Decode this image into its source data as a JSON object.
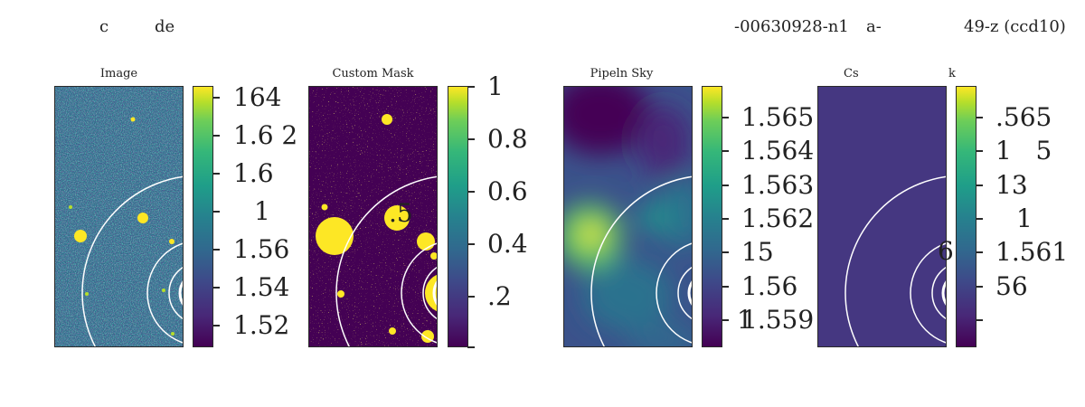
{
  "suptitle": {
    "left_a": "c",
    "left_b": "de",
    "mid": "-00630928-n1",
    "mid_b": "a-",
    "right": "49-z (ccd10)"
  },
  "chart_data": [
    {
      "type": "heatmap",
      "title": "Image",
      "colormap": "viridis",
      "ticks": [
        "164",
        "1.6 2",
        "1.6",
        "1",
        "1.56",
        "1.54",
        "1.52"
      ],
      "colors": {
        "background": "#2b7a8a",
        "sources": "#fde725",
        "rings": "#ffffff"
      }
    },
    {
      "type": "heatmap",
      "title": "Custom Mask",
      "colormap": "viridis",
      "ticks": [
        "1",
        "0.8",
        "0.6",
        "0.4",
        ".2"
      ],
      "overlay_text": ".5",
      "colors": {
        "background": "#440154",
        "masked": "#fde725",
        "rings": "#ffffff"
      }
    },
    {
      "type": "heatmap",
      "title": "Pipeln Sky",
      "colormap": "viridis",
      "ticks": [
        "1.565",
        "1.564",
        "1.563",
        "1.562",
        "15",
        "1.56",
        "1.559"
      ],
      "overlay_text": "1",
      "colors": {
        "background": "#3b528b",
        "peak": "#fde725",
        "rings": "#ffffff"
      }
    },
    {
      "type": "heatmap",
      "title": "Cs",
      "title_b": "k",
      "colormap": "viridis",
      "ticks": [
        ".565",
        "1   5",
        "13",
        "1",
        "1.561",
        "56"
      ],
      "overlay_text": "6",
      "colors": {
        "background": "#453781",
        "rings": "#ffffff"
      }
    }
  ]
}
